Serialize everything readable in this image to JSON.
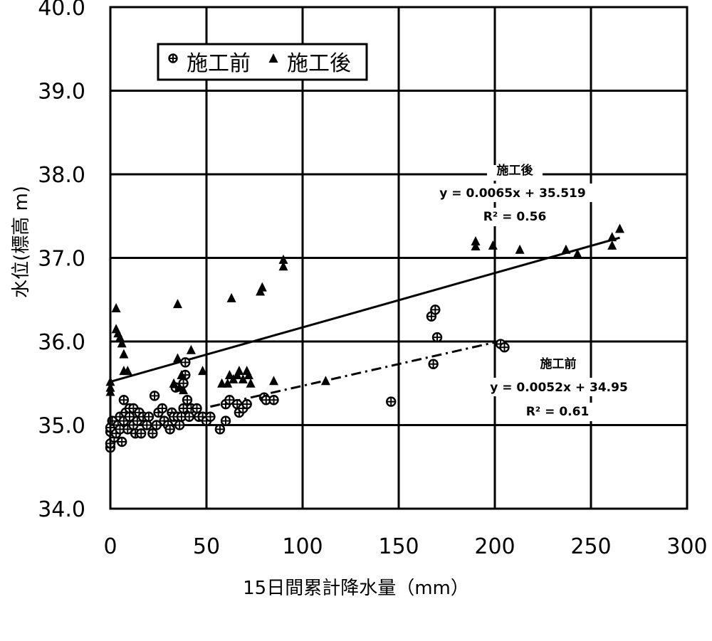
{
  "chart_data": {
    "type": "scatter",
    "xlabel": "15日間累計降水量（mm）",
    "ylabel": "水位(標高 m)",
    "xlim": [
      0,
      300
    ],
    "ylim": [
      34.0,
      40.0
    ],
    "x_ticks": [
      "0",
      "50",
      "100",
      "150",
      "200",
      "250",
      "300"
    ],
    "y_ticks": [
      "34.0",
      "35.0",
      "36.0",
      "37.0",
      "38.0",
      "39.0",
      "40.0"
    ],
    "grid": true,
    "legend_position": "top-left",
    "series": [
      {
        "name": "施工前",
        "marker": "circle-plus",
        "color": "#000000",
        "points": [
          [
            0,
            34.73
          ],
          [
            0,
            34.78
          ],
          [
            0,
            34.92
          ],
          [
            0,
            34.97
          ],
          [
            1,
            35.05
          ],
          [
            2,
            34.85
          ],
          [
            3,
            34.9
          ],
          [
            4,
            35.0
          ],
          [
            5,
            35.1
          ],
          [
            5,
            34.95
          ],
          [
            6,
            34.8
          ],
          [
            7,
            35.05
          ],
          [
            7,
            35.3
          ],
          [
            8,
            35.15
          ],
          [
            9,
            34.95
          ],
          [
            10,
            35.2
          ],
          [
            10,
            35.1
          ],
          [
            12,
            35.2
          ],
          [
            12,
            35.0
          ],
          [
            13,
            34.9
          ],
          [
            14,
            35.05
          ],
          [
            15,
            35.15
          ],
          [
            16,
            34.9
          ],
          [
            17,
            35.1
          ],
          [
            19,
            35.0
          ],
          [
            20,
            35.1
          ],
          [
            22,
            34.9
          ],
          [
            23,
            35.35
          ],
          [
            24,
            35.0
          ],
          [
            25,
            35.15
          ],
          [
            27,
            35.2
          ],
          [
            28,
            35.05
          ],
          [
            30,
            35.0
          ],
          [
            31,
            34.95
          ],
          [
            32,
            35.15
          ],
          [
            33,
            35.1
          ],
          [
            34,
            35.45
          ],
          [
            35,
            35.1
          ],
          [
            36,
            35.0
          ],
          [
            37,
            35.1
          ],
          [
            38,
            35.2
          ],
          [
            38,
            35.5
          ],
          [
            39,
            35.6
          ],
          [
            39,
            35.75
          ],
          [
            40,
            35.3
          ],
          [
            41,
            35.1
          ],
          [
            42,
            35.2
          ],
          [
            45,
            35.2
          ],
          [
            46,
            35.1
          ],
          [
            48,
            35.1
          ],
          [
            50,
            35.05
          ],
          [
            52,
            35.1
          ],
          [
            57,
            34.95
          ],
          [
            60,
            35.05
          ],
          [
            60,
            35.25
          ],
          [
            62,
            35.3
          ],
          [
            66,
            35.25
          ],
          [
            67,
            35.15
          ],
          [
            69,
            35.2
          ],
          [
            71,
            35.25
          ],
          [
            80,
            35.33
          ],
          [
            81,
            35.3
          ],
          [
            85,
            35.3
          ],
          [
            146,
            35.28
          ],
          [
            167,
            36.3
          ],
          [
            168,
            35.73
          ],
          [
            169,
            36.38
          ],
          [
            170,
            36.05
          ],
          [
            203,
            35.97
          ],
          [
            205,
            35.93
          ]
        ]
      },
      {
        "name": "施工後",
        "marker": "triangle",
        "color": "#000000",
        "points": [
          [
            0,
            35.52
          ],
          [
            0,
            35.45
          ],
          [
            0,
            35.4
          ],
          [
            3,
            36.4
          ],
          [
            3,
            36.15
          ],
          [
            4,
            36.1
          ],
          [
            5,
            36.05
          ],
          [
            6,
            35.98
          ],
          [
            7,
            35.85
          ],
          [
            7,
            35.65
          ],
          [
            9,
            35.65
          ],
          [
            35,
            36.45
          ],
          [
            33,
            35.5
          ],
          [
            35,
            35.8
          ],
          [
            36,
            35.45
          ],
          [
            37,
            35.6
          ],
          [
            38,
            35.42
          ],
          [
            42,
            35.9
          ],
          [
            48,
            35.65
          ],
          [
            58,
            35.5
          ],
          [
            61,
            35.5
          ],
          [
            62,
            35.6
          ],
          [
            63,
            36.52
          ],
          [
            64,
            35.55
          ],
          [
            66,
            35.6
          ],
          [
            67,
            35.65
          ],
          [
            69,
            35.55
          ],
          [
            71,
            35.65
          ],
          [
            72,
            35.6
          ],
          [
            73,
            35.5
          ],
          [
            78,
            36.6
          ],
          [
            79,
            36.65
          ],
          [
            85,
            35.53
          ],
          [
            90,
            36.98
          ],
          [
            90,
            36.9
          ],
          [
            112,
            35.53
          ],
          [
            190,
            37.2
          ],
          [
            190,
            37.14
          ],
          [
            199,
            37.15
          ],
          [
            213,
            37.1
          ],
          [
            237,
            37.1
          ],
          [
            243,
            37.05
          ],
          [
            261,
            37.25
          ],
          [
            261,
            37.15
          ],
          [
            265,
            37.35
          ]
        ]
      }
    ],
    "trendlines": [
      {
        "series": "施工後",
        "slope": 0.0065,
        "intercept": 35.519,
        "x_range": [
          0,
          265
        ],
        "style": "solid",
        "label_title": "施工後",
        "equation": "y = 0.0065x + 35.519",
        "r2_label": "R²  = 0.56"
      },
      {
        "series": "施工前",
        "slope": 0.0052,
        "intercept": 34.95,
        "x_range": [
          52,
          205
        ],
        "style": "dash-dot",
        "label_title": "施工前",
        "equation": "y = 0.0052x + 34.95",
        "r2_label": "R²  = 0.61"
      }
    ]
  }
}
